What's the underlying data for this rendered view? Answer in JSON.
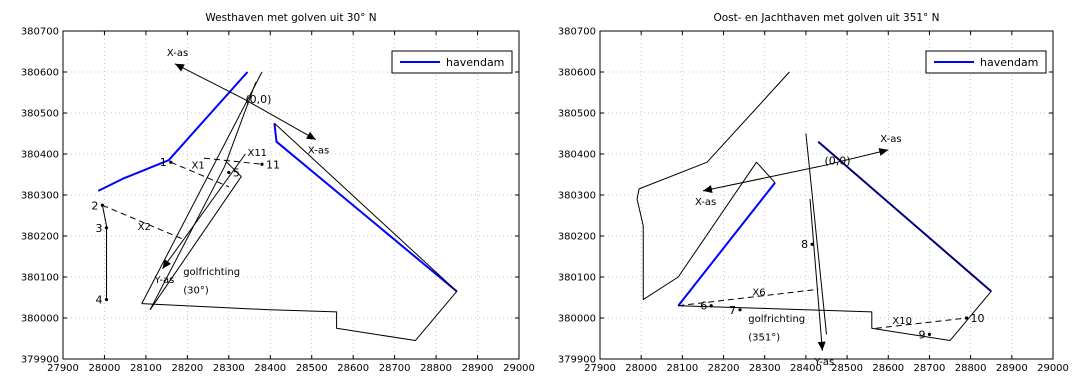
{
  "chart_data": [
    {
      "type": "line",
      "title": "Westhaven met golven uit 30° N",
      "xlim": [
        27900,
        29000
      ],
      "ylim": [
        379900,
        380700
      ],
      "xticks": [
        27900,
        28000,
        28100,
        28200,
        28300,
        28400,
        28500,
        28600,
        28700,
        28800,
        28900,
        29000
      ],
      "yticks": [
        379900,
        380000,
        380100,
        380200,
        380300,
        380400,
        380500,
        380600,
        380700
      ],
      "grid": true,
      "legend": {
        "location": "top-right",
        "entries": [
          {
            "name": "havendam",
            "color": "#0000ff"
          }
        ]
      },
      "series": [
        {
          "name": "havendam",
          "color": "#0000ff",
          "width": 2,
          "segments": [
            [
              [
                27985,
                380310
              ],
              [
                28045,
                380340
              ],
              [
                28155,
                380385
              ],
              [
                28345,
                380600
              ]
            ],
            [
              [
                28410,
                380475
              ],
              [
                28415,
                380430
              ],
              [
                28850,
                380065
              ]
            ]
          ]
        },
        {
          "color": "#000000",
          "width": 1,
          "segments": [
            [
              [
                28090,
                380035
              ],
              [
                28400,
                380020
              ],
              [
                28560,
                380015
              ],
              [
                28560,
                379975
              ],
              [
                28750,
                379945
              ],
              [
                28850,
                380065
              ],
              [
                28410,
                380475
              ]
            ],
            [
              [
                28005,
                380045
              ],
              [
                28005,
                380225
              ],
              [
                27995,
                380275
              ]
            ],
            [
              [
                28110,
                380020
              ],
              [
                28290,
                380370
              ],
              [
                28365,
                380575
              ]
            ],
            [
              [
                28090,
                380035
              ],
              [
                28380,
                380600
              ]
            ],
            [
              [
                28110,
                380020
              ],
              [
                28330,
                380345
              ],
              [
                28295,
                380380
              ]
            ]
          ]
        },
        {
          "color": "#000000",
          "width": 1,
          "dash": true,
          "segments": [
            [
              [
                28160,
                380380
              ],
              [
                28300,
                380320
              ]
            ],
            [
              [
                27995,
                380275
              ],
              [
                28195,
                380190
              ]
            ],
            [
              [
                28240,
                380390
              ],
              [
                28380,
                380375
              ]
            ]
          ]
        }
      ],
      "arrows": [
        {
          "from": [
            28335,
            380535
          ],
          "to": [
            28510,
            380435
          ],
          "label": "X-as"
        },
        {
          "from": [
            28335,
            380535
          ],
          "to": [
            28170,
            380620
          ],
          "label": "X-as"
        },
        {
          "from": [
            28340,
            380400
          ],
          "to": [
            28140,
            380120
          ],
          "label": "Y-as"
        }
      ],
      "points": [
        {
          "label": "1",
          "x": 28160,
          "y": 380380
        },
        {
          "label": "2",
          "x": 27995,
          "y": 380275
        },
        {
          "label": "3",
          "x": 28005,
          "y": 380220
        },
        {
          "label": "4",
          "x": 28005,
          "y": 380045
        },
        {
          "label": "5",
          "x": 28300,
          "y": 380355
        },
        {
          "label": "11",
          "x": 28380,
          "y": 380375
        }
      ],
      "labels": [
        {
          "text": "(0,0)",
          "x": 28340,
          "y": 380525
        },
        {
          "text": "X1",
          "x": 28210,
          "y": 380365
        },
        {
          "text": "X2",
          "x": 28080,
          "y": 380215
        },
        {
          "text": "X11",
          "x": 28345,
          "y": 380395
        },
        {
          "text": "golfrichting",
          "x": 28190,
          "y": 380105
        },
        {
          "text": "(30°)",
          "x": 28190,
          "y": 380060
        }
      ]
    },
    {
      "type": "line",
      "title": "Oost- en Jachthaven met golven uit 351° N",
      "xlim": [
        27900,
        29000
      ],
      "ylim": [
        379900,
        380700
      ],
      "xticks": [
        27900,
        28000,
        28100,
        28200,
        28300,
        28400,
        28500,
        28600,
        28700,
        28800,
        28900,
        29000
      ],
      "yticks": [
        379900,
        380000,
        380100,
        380200,
        380300,
        380400,
        380500,
        380600,
        380700
      ],
      "grid": true,
      "legend": {
        "location": "top-right",
        "entries": [
          {
            "name": "havendam",
            "color": "#0000ff"
          }
        ]
      },
      "series": [
        {
          "name": "havendam",
          "color": "#0000ff",
          "width": 2,
          "segments": [
            [
              [
                28090,
                380030
              ],
              [
                28325,
                380330
              ]
            ],
            [
              [
                28430,
                380430
              ],
              [
                28850,
                380065
              ]
            ]
          ]
        },
        {
          "color": "#000000",
          "width": 1,
          "segments": [
            [
              [
                28360,
                380600
              ],
              [
                28160,
                380380
              ],
              [
                27995,
                380315
              ],
              [
                27990,
                380290
              ],
              [
                28005,
                380225
              ],
              [
                28005,
                380045
              ],
              [
                28090,
                380100
              ],
              [
                28280,
                380380
              ],
              [
                28325,
                380330
              ]
            ],
            [
              [
                28400,
                380450
              ],
              [
                28450,
                379960
              ]
            ],
            [
              [
                28090,
                380030
              ],
              [
                28400,
                380020
              ],
              [
                28560,
                380015
              ],
              [
                28560,
                379975
              ],
              [
                28750,
                379945
              ],
              [
                28850,
                380065
              ],
              [
                28430,
                380430
              ]
            ]
          ]
        },
        {
          "color": "#000000",
          "width": 1,
          "dash": true,
          "segments": [
            [
              [
                28090,
                380030
              ],
              [
                28430,
                380070
              ]
            ],
            [
              [
                28570,
                379975
              ],
              [
                28790,
                380000
              ]
            ]
          ]
        }
      ],
      "arrows": [
        {
          "from": [
            28435,
            380370
          ],
          "to": [
            28600,
            380410
          ],
          "label": "X-as"
        },
        {
          "from": [
            28435,
            380370
          ],
          "to": [
            28150,
            380310
          ],
          "label": "X-as"
        },
        {
          "from": [
            28410,
            380290
          ],
          "to": [
            28440,
            379920
          ],
          "label": "Y-as"
        }
      ],
      "points": [
        {
          "label": "6",
          "x": 28170,
          "y": 380030
        },
        {
          "label": "7",
          "x": 28240,
          "y": 380020
        },
        {
          "label": "8",
          "x": 28415,
          "y": 380180
        },
        {
          "label": "9",
          "x": 28700,
          "y": 379960
        },
        {
          "label": "10",
          "x": 28790,
          "y": 380000
        }
      ],
      "labels": [
        {
          "text": "(0,0)",
          "x": 28445,
          "y": 380375
        },
        {
          "text": "X6",
          "x": 28270,
          "y": 380055
        },
        {
          "text": "X10",
          "x": 28610,
          "y": 379985
        },
        {
          "text": "golfrichting",
          "x": 28260,
          "y": 379990
        },
        {
          "text": "(351°)",
          "x": 28260,
          "y": 379945
        }
      ]
    }
  ]
}
